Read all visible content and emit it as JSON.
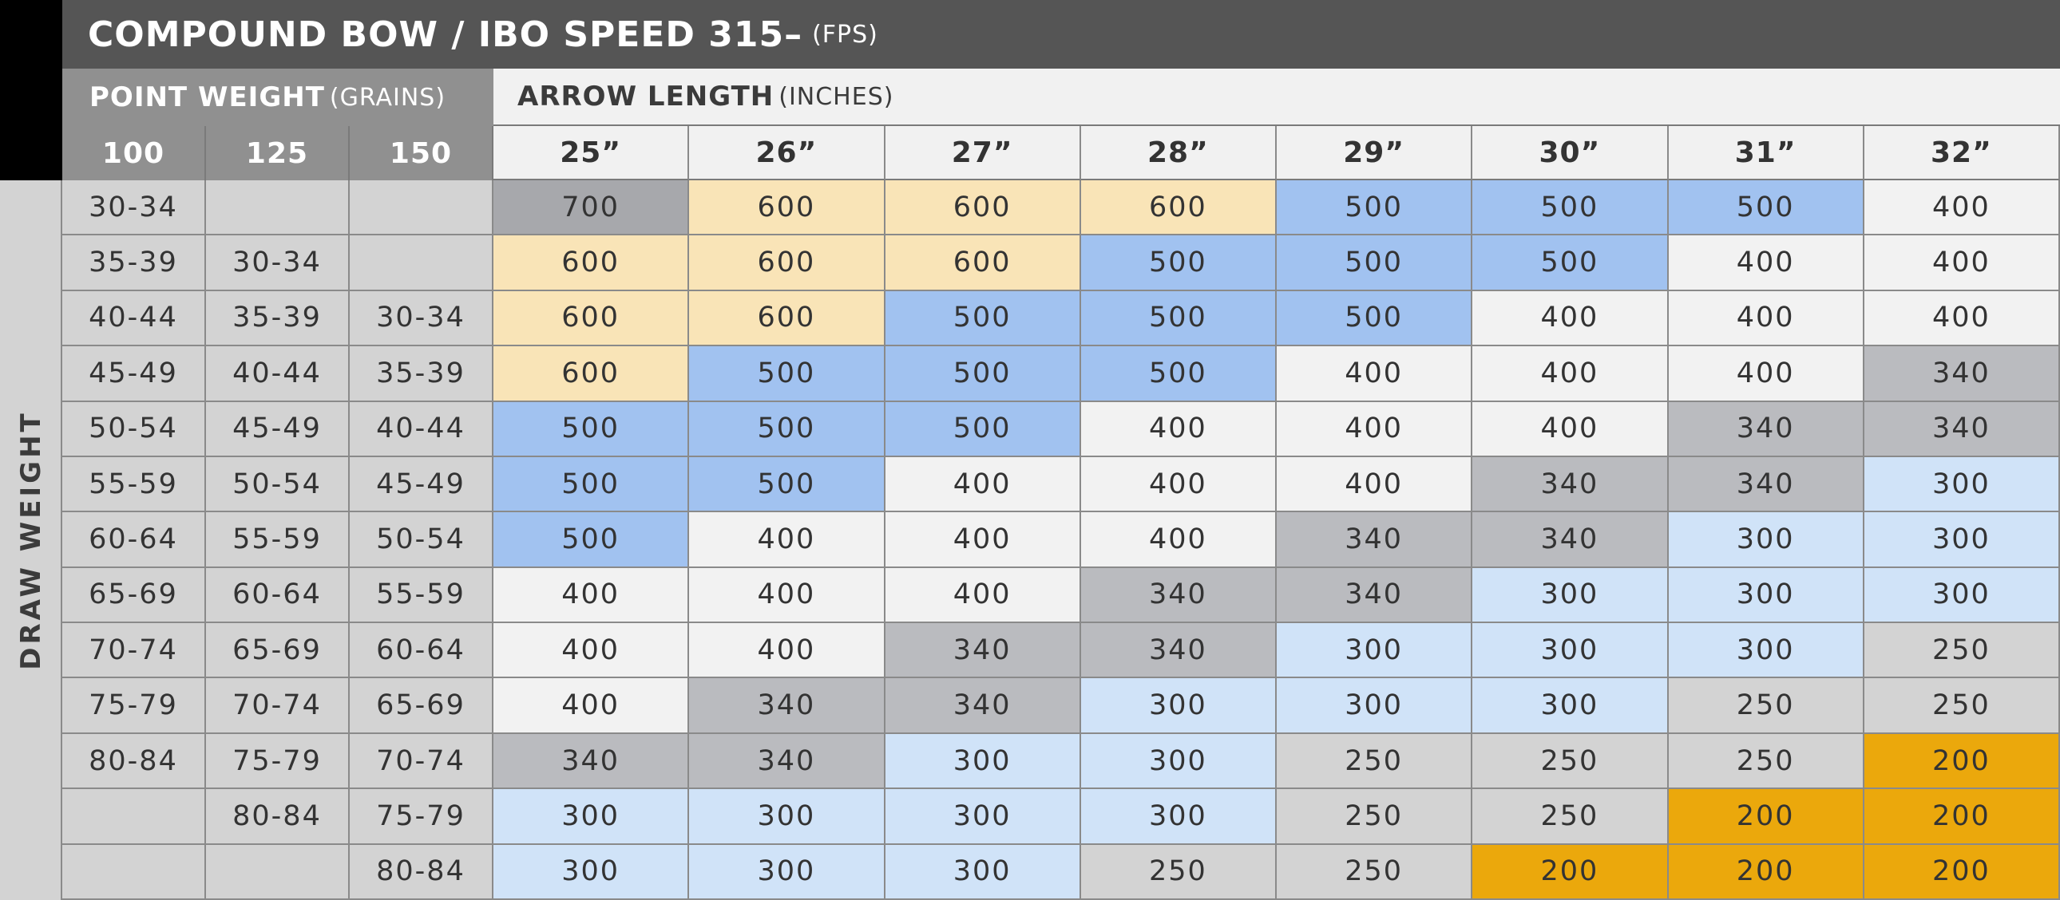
{
  "title": {
    "main": "COMPOUND BOW / IBO SPEED 315–",
    "unit": "(FPS)"
  },
  "point_weight": {
    "label": "POINT WEIGHT",
    "unit": "(GRAINS)",
    "columns": [
      "100",
      "125",
      "150"
    ]
  },
  "arrow_length": {
    "label": "ARROW LENGTH",
    "unit": "(INCHES)"
  },
  "side_label": "DRAW WEIGHT",
  "colors": {
    "700": "#a7a8ac",
    "600": "#f9e4b7",
    "500": "#a1c2f0",
    "400": "#f2f2f2",
    "340": "#babbbf",
    "300": "#d0e3f8",
    "250": "#d3d3d3",
    "200": "#eba80c"
  },
  "chart_data": {
    "type": "table",
    "title": "COMPOUND BOW / IBO SPEED 315– (FPS)",
    "columns": [
      "25”",
      "26”",
      "27”",
      "28”",
      "29”",
      "30”",
      "31”",
      "32”"
    ],
    "draw_weight_rows": [
      [
        "30-34",
        "",
        ""
      ],
      [
        "35-39",
        "30-34",
        ""
      ],
      [
        "40-44",
        "35-39",
        "30-34"
      ],
      [
        "45-49",
        "40-44",
        "35-39"
      ],
      [
        "50-54",
        "45-49",
        "40-44"
      ],
      [
        "55-59",
        "50-54",
        "45-49"
      ],
      [
        "60-64",
        "55-59",
        "50-54"
      ],
      [
        "65-69",
        "60-64",
        "55-59"
      ],
      [
        "70-74",
        "65-69",
        "60-64"
      ],
      [
        "75-79",
        "70-74",
        "65-69"
      ],
      [
        "80-84",
        "75-79",
        "70-74"
      ],
      [
        "",
        "80-84",
        "75-79"
      ],
      [
        "",
        "",
        "80-84"
      ]
    ],
    "values": [
      [
        "700",
        "600",
        "600",
        "600",
        "500",
        "500",
        "500",
        "400"
      ],
      [
        "600",
        "600",
        "600",
        "500",
        "500",
        "500",
        "400",
        "400"
      ],
      [
        "600",
        "600",
        "500",
        "500",
        "500",
        "400",
        "400",
        "400"
      ],
      [
        "600",
        "500",
        "500",
        "500",
        "400",
        "400",
        "400",
        "340"
      ],
      [
        "500",
        "500",
        "500",
        "400",
        "400",
        "400",
        "340",
        "340"
      ],
      [
        "500",
        "500",
        "400",
        "400",
        "400",
        "340",
        "340",
        "300"
      ],
      [
        "500",
        "400",
        "400",
        "400",
        "340",
        "340",
        "300",
        "300"
      ],
      [
        "400",
        "400",
        "400",
        "340",
        "340",
        "300",
        "300",
        "300"
      ],
      [
        "400",
        "400",
        "340",
        "340",
        "300",
        "300",
        "300",
        "250"
      ],
      [
        "400",
        "340",
        "340",
        "300",
        "300",
        "300",
        "250",
        "250"
      ],
      [
        "340",
        "340",
        "300",
        "300",
        "250",
        "250",
        "250",
        "200"
      ],
      [
        "300",
        "300",
        "300",
        "300",
        "250",
        "250",
        "200",
        "200"
      ],
      [
        "300",
        "300",
        "300",
        "250",
        "250",
        "200",
        "200",
        "200"
      ]
    ]
  }
}
